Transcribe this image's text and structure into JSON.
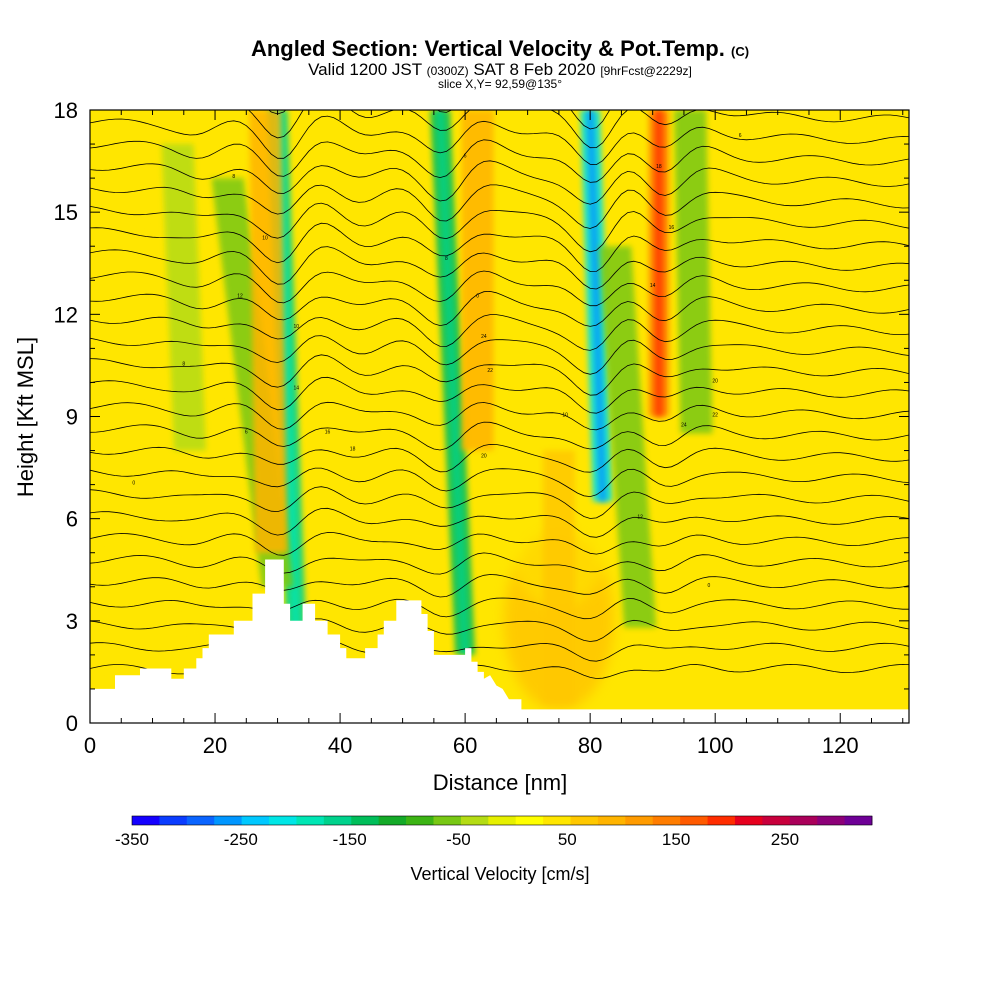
{
  "header": {
    "title_main": "Angled Section: Vertical Velocity & Pot.Temp.",
    "title_unit": "(C)",
    "subtitle_a": "Valid 1200 JST",
    "subtitle_b": "(0300Z)",
    "subtitle_c": "SAT 8 Feb 2020",
    "subtitle_d": "[9hrFcst@2229z]",
    "slice": "slice X,Y= 92,59@135°"
  },
  "chart_data": {
    "type": "heatmap",
    "title": "Angled Section: Vertical Velocity & Pot.Temp. (C)",
    "xlabel": "Distance [nm]",
    "ylabel": "Height [Kft MSL]",
    "xlim": [
      0,
      131
    ],
    "ylim": [
      0,
      18
    ],
    "x_ticks": [
      "0",
      "20",
      "40",
      "60",
      "80",
      "100",
      "120"
    ],
    "y_ticks": [
      "0",
      "3",
      "6",
      "9",
      "12",
      "15",
      "18"
    ],
    "colorbar": {
      "title": "Vertical Velocity [cm/s]",
      "tick_labels": [
        "-350",
        "-250",
        "-150",
        "-50",
        "50",
        "150",
        "250"
      ],
      "min": -350,
      "max": 330,
      "colors": [
        "#1400ff",
        "#0a3cff",
        "#0a64ff",
        "#0096ff",
        "#00c8ff",
        "#00e6e6",
        "#00e6b4",
        "#00d28c",
        "#00be5a",
        "#14aa28",
        "#3cb414",
        "#78c814",
        "#b4dc14",
        "#e6f000",
        "#ffff00",
        "#ffe600",
        "#ffc800",
        "#ffb400",
        "#ff9b00",
        "#ff7d00",
        "#ff5a00",
        "#ff2d00",
        "#e6001e",
        "#c8003c",
        "#aa005a",
        "#8c0078",
        "#6e0096"
      ]
    },
    "vertical_velocity_bands": [
      {
        "x_top": 30,
        "x_bottom": 33,
        "y_top": 18,
        "y_bottom": 2.5,
        "value": -150
      },
      {
        "x_top": 22,
        "x_bottom": 30,
        "y_top": 16,
        "y_bottom": 4,
        "value": -60
      },
      {
        "x_top": 28,
        "x_bottom": 29,
        "y_top": 18,
        "y_bottom": 5,
        "value": 80
      },
      {
        "x_top": 56,
        "x_bottom": 60,
        "y_top": 18,
        "y_bottom": 2.0,
        "value": -130
      },
      {
        "x_top": 62,
        "x_bottom": 62,
        "y_top": 18,
        "y_bottom": 8,
        "value": 80
      },
      {
        "x_top": 80,
        "x_bottom": 82,
        "y_top": 18,
        "y_bottom": 6.5,
        "value": -200
      },
      {
        "x_top": 84,
        "x_bottom": 88,
        "y_top": 14,
        "y_bottom": 2.8,
        "value": -70
      },
      {
        "x_top": 91,
        "x_bottom": 91,
        "y_top": 18,
        "y_bottom": 9,
        "value": 150
      },
      {
        "x_top": 75,
        "x_bottom": 75,
        "y_top": 8,
        "y_bottom": 0.6,
        "value": 70
      },
      {
        "x_top": 96,
        "x_bottom": 97,
        "y_top": 18,
        "y_bottom": 8.5,
        "value": -60
      },
      {
        "x_top": 14,
        "x_bottom": 16,
        "y_top": 17,
        "y_bottom": 8,
        "value": -40
      }
    ],
    "terrain": [
      [
        0,
        1.0
      ],
      [
        4,
        1.0
      ],
      [
        4,
        1.4
      ],
      [
        8,
        1.4
      ],
      [
        8,
        1.6
      ],
      [
        13,
        1.6
      ],
      [
        13,
        1.3
      ],
      [
        15,
        1.3
      ],
      [
        15,
        1.6
      ],
      [
        17,
        1.6
      ],
      [
        17,
        1.9
      ],
      [
        18,
        1.9
      ],
      [
        18,
        2.2
      ],
      [
        19,
        2.2
      ],
      [
        19,
        2.6
      ],
      [
        23,
        2.6
      ],
      [
        23,
        3.0
      ],
      [
        26,
        3.0
      ],
      [
        26,
        3.8
      ],
      [
        28,
        3.8
      ],
      [
        28,
        4.8
      ],
      [
        31,
        4.8
      ],
      [
        31,
        3.5
      ],
      [
        32,
        3.5
      ],
      [
        32,
        3.0
      ],
      [
        34,
        3.0
      ],
      [
        34,
        3.5
      ],
      [
        36,
        3.5
      ],
      [
        36,
        3.0
      ],
      [
        38,
        3.0
      ],
      [
        38,
        2.6
      ],
      [
        40,
        2.6
      ],
      [
        40,
        2.2
      ],
      [
        41,
        2.2
      ],
      [
        41,
        1.9
      ],
      [
        44,
        1.9
      ],
      [
        44,
        2.2
      ],
      [
        46,
        2.2
      ],
      [
        46,
        2.6
      ],
      [
        47,
        2.6
      ],
      [
        47,
        3.0
      ],
      [
        49,
        3.0
      ],
      [
        49,
        3.6
      ],
      [
        53,
        3.6
      ],
      [
        53,
        3.2
      ],
      [
        54,
        3.2
      ],
      [
        54,
        2.7
      ],
      [
        55,
        2.7
      ],
      [
        55,
        2.0
      ],
      [
        60,
        2.0
      ],
      [
        60,
        2.2
      ],
      [
        61,
        2.2
      ],
      [
        61,
        1.8
      ],
      [
        62,
        1.8
      ],
      [
        62,
        1.5
      ],
      [
        63,
        1.5
      ],
      [
        63,
        1.3
      ],
      [
        64,
        1.4
      ],
      [
        65,
        1.1
      ],
      [
        66,
        1.0
      ],
      [
        67,
        0.7
      ],
      [
        69,
        0.7
      ],
      [
        69,
        0.4
      ],
      [
        131,
        0.4
      ]
    ],
    "theta_contours_count": 28,
    "theta_contour_labels": [
      "0",
      "6",
      "8",
      "10",
      "12",
      "14",
      "16",
      "18",
      "20",
      "22",
      "24"
    ]
  }
}
